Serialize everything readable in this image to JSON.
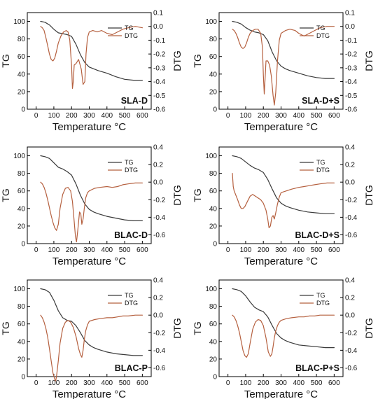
{
  "colors": {
    "tg": "#3a3a3a",
    "dtg": "#b5603f"
  },
  "chart_data": [
    {
      "type": "line",
      "sample": "SLA-D",
      "xlabel": "Temperature °C",
      "ylabel_left": "TG",
      "ylabel_right": "DTG",
      "xlim": [
        -50,
        650
      ],
      "ylim_left": [
        0,
        110
      ],
      "ylim_right": [
        -0.6,
        0.1
      ],
      "xticks": [
        0,
        100,
        200,
        300,
        400,
        500,
        600
      ],
      "yticks_left": [
        0,
        20,
        40,
        60,
        80,
        100
      ],
      "yticks_right": [
        "0.1",
        "0.0",
        "-0.1",
        "-0.2",
        "-0.3",
        "-0.4",
        "-0.5",
        "-0.6"
      ],
      "legend": [
        "TG",
        "DTG"
      ],
      "series": [
        {
          "name": "TG",
          "axis": "left",
          "x": [
            25,
            50,
            75,
            100,
            125,
            150,
            175,
            200,
            225,
            250,
            275,
            300,
            325,
            350,
            400,
            450,
            500,
            550,
            600
          ],
          "y": [
            100,
            99,
            96,
            91,
            87,
            86,
            85,
            83,
            74,
            62,
            53,
            48,
            46,
            44,
            41,
            37,
            34,
            33,
            33
          ]
        },
        {
          "name": "DTG",
          "axis": "right",
          "x": [
            25,
            35,
            45,
            55,
            65,
            75,
            85,
            95,
            105,
            115,
            125,
            140,
            155,
            170,
            180,
            190,
            200,
            205,
            210,
            215,
            225,
            240,
            255,
            265,
            275,
            282,
            290,
            300,
            320,
            345,
            370,
            400,
            430,
            460,
            490,
            520,
            560,
            600
          ],
          "y": [
            0.0,
            -0.01,
            -0.03,
            -0.08,
            -0.14,
            -0.2,
            -0.24,
            -0.25,
            -0.23,
            -0.18,
            -0.12,
            -0.07,
            -0.04,
            -0.03,
            -0.04,
            -0.1,
            -0.28,
            -0.45,
            -0.4,
            -0.28,
            -0.27,
            -0.24,
            -0.31,
            -0.42,
            -0.4,
            -0.2,
            -0.08,
            -0.04,
            -0.03,
            -0.04,
            -0.03,
            -0.05,
            -0.06,
            -0.04,
            -0.02,
            -0.01,
            0.0,
            -0.01
          ]
        }
      ]
    },
    {
      "type": "line",
      "sample": "SLA-D+S",
      "xlabel": "Temperature °C",
      "ylabel_left": "TG",
      "ylabel_right": "DTG",
      "xlim": [
        -50,
        650
      ],
      "ylim_left": [
        0,
        110
      ],
      "ylim_right": [
        -0.6,
        0.1
      ],
      "xticks": [
        0,
        100,
        200,
        300,
        400,
        500,
        600
      ],
      "yticks_left": [
        0,
        20,
        40,
        60,
        80,
        100
      ],
      "yticks_right": [
        "0.1",
        "0.0",
        "-0.1",
        "-0.2",
        "-0.3",
        "-0.4",
        "-0.5",
        "-0.6"
      ],
      "legend": [
        "TG",
        "DTG"
      ],
      "series": [
        {
          "name": "TG",
          "axis": "left",
          "x": [
            25,
            50,
            75,
            100,
            125,
            150,
            175,
            200,
            225,
            250,
            275,
            300,
            325,
            350,
            400,
            450,
            500,
            550,
            600
          ],
          "y": [
            100,
            99,
            97,
            93,
            90,
            88,
            87,
            85,
            78,
            65,
            55,
            49,
            46,
            44,
            41,
            38,
            36,
            35,
            35
          ]
        },
        {
          "name": "DTG",
          "axis": "right",
          "x": [
            25,
            35,
            45,
            55,
            65,
            75,
            85,
            95,
            105,
            115,
            125,
            140,
            155,
            170,
            185,
            195,
            200,
            205,
            210,
            215,
            225,
            235,
            245,
            255,
            262,
            270,
            280,
            290,
            300,
            325,
            350,
            380,
            400,
            430,
            460,
            490,
            520,
            560,
            600
          ],
          "y": [
            -0.02,
            -0.03,
            -0.05,
            -0.08,
            -0.12,
            -0.15,
            -0.16,
            -0.15,
            -0.12,
            -0.08,
            -0.05,
            -0.03,
            -0.02,
            -0.02,
            -0.05,
            -0.15,
            -0.35,
            -0.49,
            -0.38,
            -0.25,
            -0.25,
            -0.28,
            -0.36,
            -0.5,
            -0.57,
            -0.48,
            -0.25,
            -0.1,
            -0.05,
            -0.03,
            -0.02,
            -0.03,
            -0.05,
            -0.07,
            -0.05,
            -0.03,
            -0.01,
            0.0,
            0.0
          ]
        }
      ]
    },
    {
      "type": "line",
      "sample": "BLAC-D",
      "xlabel": "Temperature °C",
      "ylabel_left": "TG",
      "ylabel_right": "DTG",
      "xlim": [
        -50,
        650
      ],
      "ylim_left": [
        0,
        110
      ],
      "ylim_right": [
        -0.7,
        0.4
      ],
      "xticks": [
        0,
        100,
        200,
        300,
        400,
        500,
        600
      ],
      "yticks_left": [
        0,
        20,
        40,
        60,
        80,
        100
      ],
      "yticks_right": [
        "0.4",
        "0.2",
        "0.0",
        "-0.2",
        "-0.4",
        "-0.6"
      ],
      "legend": [
        "TG",
        "DTG"
      ],
      "series": [
        {
          "name": "TG",
          "axis": "left",
          "x": [
            25,
            50,
            75,
            100,
            125,
            150,
            175,
            200,
            225,
            250,
            275,
            300,
            325,
            350,
            400,
            450,
            500,
            550,
            600
          ],
          "y": [
            100,
            99,
            97,
            92,
            87,
            85,
            82,
            78,
            68,
            55,
            45,
            39,
            36,
            34,
            31,
            29,
            27,
            26,
            26
          ]
        },
        {
          "name": "DTG",
          "axis": "right",
          "x": [
            25,
            35,
            45,
            55,
            65,
            75,
            85,
            95,
            105,
            115,
            125,
            135,
            150,
            165,
            180,
            195,
            205,
            215,
            222,
            228,
            235,
            245,
            252,
            258,
            265,
            272,
            280,
            290,
            300,
            330,
            360,
            400,
            430,
            460,
            490,
            520,
            560,
            600
          ],
          "y": [
            0.0,
            -0.02,
            -0.06,
            -0.12,
            -0.2,
            -0.29,
            -0.38,
            -0.46,
            -0.52,
            -0.55,
            -0.48,
            -0.3,
            -0.14,
            -0.07,
            -0.06,
            -0.1,
            -0.22,
            -0.45,
            -0.62,
            -0.68,
            -0.55,
            -0.34,
            -0.36,
            -0.48,
            -0.42,
            -0.3,
            -0.18,
            -0.12,
            -0.1,
            -0.07,
            -0.06,
            -0.05,
            -0.06,
            -0.05,
            -0.03,
            -0.02,
            -0.01,
            -0.01
          ]
        }
      ]
    },
    {
      "type": "line",
      "sample": "BLAC-D+S",
      "xlabel": "Temperature °C",
      "ylabel_left": "TG",
      "ylabel_right": "DTG",
      "xlim": [
        -50,
        650
      ],
      "ylim_left": [
        0,
        110
      ],
      "ylim_right": [
        -0.7,
        0.4
      ],
      "xticks": [
        0,
        100,
        200,
        300,
        400,
        500,
        600
      ],
      "yticks_left": [
        0,
        20,
        40,
        60,
        80,
        100
      ],
      "yticks_right": [
        "0.4",
        "0.2",
        "0.0",
        "-0.2",
        "-0.4",
        "-0.6"
      ],
      "legend": [
        "TG",
        "DTG"
      ],
      "series": [
        {
          "name": "TG",
          "axis": "left",
          "x": [
            25,
            50,
            75,
            100,
            125,
            150,
            175,
            200,
            225,
            250,
            275,
            300,
            325,
            350,
            400,
            450,
            500,
            550,
            600
          ],
          "y": [
            100,
            99,
            97,
            93,
            89,
            86,
            84,
            81,
            73,
            62,
            52,
            46,
            43,
            41,
            38,
            36,
            35,
            34,
            34
          ]
        },
        {
          "name": "DTG",
          "axis": "right",
          "x": [
            25,
            30,
            35,
            45,
            55,
            65,
            75,
            85,
            95,
            105,
            115,
            125,
            140,
            155,
            170,
            185,
            200,
            215,
            225,
            232,
            240,
            248,
            255,
            262,
            270,
            280,
            290,
            300,
            330,
            360,
            400,
            430,
            460,
            490,
            520,
            560,
            600
          ],
          "y": [
            0.1,
            -0.05,
            -0.1,
            -0.15,
            -0.2,
            -0.26,
            -0.3,
            -0.3,
            -0.28,
            -0.24,
            -0.2,
            -0.16,
            -0.14,
            -0.16,
            -0.18,
            -0.2,
            -0.24,
            -0.32,
            -0.42,
            -0.52,
            -0.5,
            -0.4,
            -0.38,
            -0.42,
            -0.35,
            -0.25,
            -0.17,
            -0.12,
            -0.1,
            -0.08,
            -0.06,
            -0.05,
            -0.04,
            -0.03,
            -0.02,
            -0.01,
            -0.01
          ]
        }
      ]
    },
    {
      "type": "line",
      "sample": "BLAC-P",
      "xlabel": "Temperature °C",
      "ylabel_left": "TG",
      "ylabel_right": "DTG",
      "xlim": [
        -50,
        650
      ],
      "ylim_left": [
        0,
        110
      ],
      "ylim_right": [
        -0.7,
        0.4
      ],
      "xticks": [
        0,
        100,
        200,
        300,
        400,
        500,
        600
      ],
      "yticks_left": [
        0,
        20,
        40,
        60,
        80,
        100
      ],
      "yticks_right": [
        "0.4",
        "0.2",
        "0.0",
        "-0.2",
        "-0.4",
        "-0.6"
      ],
      "legend": [
        "TG",
        "DTG"
      ],
      "series": [
        {
          "name": "TG",
          "axis": "left",
          "x": [
            25,
            50,
            75,
            100,
            125,
            150,
            175,
            200,
            225,
            250,
            275,
            300,
            325,
            350,
            400,
            450,
            500,
            550,
            600
          ],
          "y": [
            100,
            99,
            96,
            87,
            75,
            67,
            64,
            63,
            58,
            50,
            41,
            36,
            33,
            31,
            28,
            26,
            25,
            24,
            24
          ]
        },
        {
          "name": "DTG",
          "axis": "right",
          "x": [
            25,
            35,
            45,
            55,
            65,
            75,
            85,
            95,
            105,
            110,
            115,
            125,
            135,
            150,
            165,
            180,
            195,
            210,
            225,
            240,
            250,
            258,
            265,
            272,
            280,
            290,
            300,
            330,
            360,
            400,
            430,
            460,
            490,
            520,
            560,
            600
          ],
          "y": [
            0.0,
            -0.03,
            -0.08,
            -0.15,
            -0.25,
            -0.38,
            -0.52,
            -0.66,
            -0.73,
            -0.75,
            -0.7,
            -0.52,
            -0.32,
            -0.15,
            -0.08,
            -0.06,
            -0.08,
            -0.14,
            -0.24,
            -0.38,
            -0.45,
            -0.48,
            -0.4,
            -0.28,
            -0.18,
            -0.11,
            -0.07,
            -0.05,
            -0.04,
            -0.03,
            -0.03,
            -0.02,
            -0.01,
            -0.01,
            0.0,
            0.0
          ]
        }
      ]
    },
    {
      "type": "line",
      "sample": "BLAC-P+S",
      "xlabel": "Temperature °C",
      "ylabel_left": "TG",
      "ylabel_right": "DTG",
      "xlim": [
        -50,
        650
      ],
      "ylim_left": [
        0,
        110
      ],
      "ylim_right": [
        -0.7,
        0.4
      ],
      "xticks": [
        0,
        100,
        200,
        300,
        400,
        500,
        600
      ],
      "yticks_left": [
        0,
        20,
        40,
        60,
        80,
        100
      ],
      "yticks_right": [
        "0.4",
        "0.2",
        "0.0",
        "-0.2",
        "-0.4",
        "-0.6"
      ],
      "legend": [
        "TG",
        "DTG"
      ],
      "series": [
        {
          "name": "TG",
          "axis": "left",
          "x": [
            25,
            50,
            75,
            100,
            125,
            150,
            175,
            200,
            225,
            250,
            275,
            300,
            325,
            350,
            400,
            450,
            500,
            550,
            600
          ],
          "y": [
            100,
            99,
            97,
            92,
            85,
            79,
            76,
            74,
            68,
            58,
            49,
            44,
            41,
            39,
            36,
            35,
            34,
            33,
            33
          ]
        },
        {
          "name": "DTG",
          "axis": "right",
          "x": [
            25,
            35,
            45,
            55,
            65,
            75,
            85,
            95,
            105,
            115,
            125,
            140,
            155,
            170,
            185,
            200,
            215,
            228,
            240,
            248,
            255,
            262,
            270,
            280,
            290,
            300,
            330,
            360,
            400,
            430,
            460,
            490,
            520,
            560,
            600
          ],
          "y": [
            0.0,
            -0.02,
            -0.06,
            -0.12,
            -0.2,
            -0.3,
            -0.4,
            -0.46,
            -0.48,
            -0.44,
            -0.32,
            -0.16,
            -0.08,
            -0.05,
            -0.06,
            -0.12,
            -0.26,
            -0.42,
            -0.47,
            -0.44,
            -0.36,
            -0.26,
            -0.18,
            -0.12,
            -0.08,
            -0.06,
            -0.04,
            -0.03,
            -0.02,
            -0.02,
            -0.01,
            -0.01,
            0.0,
            0.0,
            0.0
          ]
        }
      ]
    }
  ]
}
